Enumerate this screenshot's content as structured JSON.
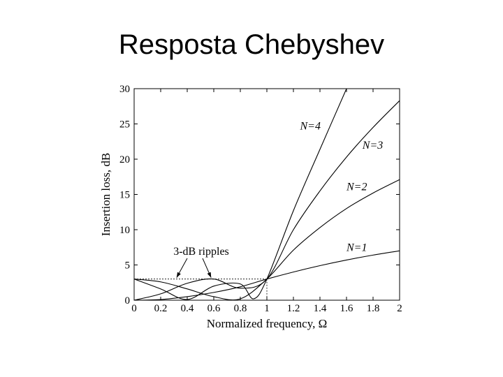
{
  "slide": {
    "title": "Resposta Chebyshev"
  },
  "colors": {
    "background": "#ffffff",
    "ink": "#000000"
  },
  "chart_data": {
    "type": "line",
    "title": "",
    "xlabel": "Normalized frequency, Ω",
    "ylabel": "Insertion loss, dB",
    "xlim": [
      0,
      2
    ],
    "ylim": [
      0,
      30
    ],
    "xticks": [
      0,
      0.2,
      0.4,
      0.6,
      0.8,
      1,
      1.2,
      1.4,
      1.6,
      1.8,
      2
    ],
    "xtick_labels": [
      "0",
      "0.2",
      "0.4",
      "0.6",
      "0.8",
      "1",
      "1.2",
      "1.4",
      "1.6",
      "1.8",
      "2"
    ],
    "yticks": [
      0,
      5,
      10,
      15,
      20,
      25,
      30
    ],
    "ytick_labels": [
      "0",
      "5",
      "10",
      "15",
      "20",
      "25",
      "30"
    ],
    "grid": false,
    "ripple_level_db": 3,
    "series": [
      {
        "name": "N = 1",
        "label": "N=1",
        "order": 1,
        "x": [
          0,
          0.2,
          0.4,
          0.6,
          0.8,
          1,
          1.2,
          1.4,
          1.6,
          1.8,
          2
        ],
        "y": [
          0,
          0.1,
          0.5,
          1.1,
          1.9,
          3.0,
          4.0,
          4.9,
          5.7,
          6.4,
          7.0
        ]
      },
      {
        "name": "N = 2",
        "label": "N=2",
        "order": 2,
        "x": [
          0,
          0.2,
          0.4,
          0.6,
          0.8,
          1,
          1.2,
          1.4,
          1.6,
          1.8,
          2
        ],
        "y": [
          3.0,
          2.6,
          1.6,
          0.5,
          0.2,
          3.0,
          7.1,
          10.3,
          13.0,
          15.2,
          17.1
        ]
      },
      {
        "name": "N = 3",
        "label": "N=3",
        "order": 3,
        "x": [
          0,
          0.2,
          0.4,
          0.6,
          0.8,
          1,
          1.2,
          1.4,
          1.6,
          1.8,
          2
        ],
        "y": [
          0,
          0.9,
          2.4,
          3.0,
          1.7,
          3.0,
          10.0,
          15.5,
          20.3,
          24.5,
          28.3
        ]
      },
      {
        "name": "N = 4",
        "label": "N=4",
        "order": 4,
        "x": [
          0,
          0.2,
          0.4,
          0.6,
          0.8,
          0.9,
          1,
          1.2,
          1.4,
          1.6
        ],
        "y": [
          3.0,
          1.6,
          0.1,
          2.0,
          2.3,
          0.2,
          3.0,
          12.7,
          21.4,
          30.0
        ]
      }
    ],
    "annotations": [
      {
        "text": "3-dB ripples",
        "points_to": [
          [
            0.32,
            3.0
          ],
          [
            0.58,
            3.0
          ]
        ]
      }
    ]
  }
}
